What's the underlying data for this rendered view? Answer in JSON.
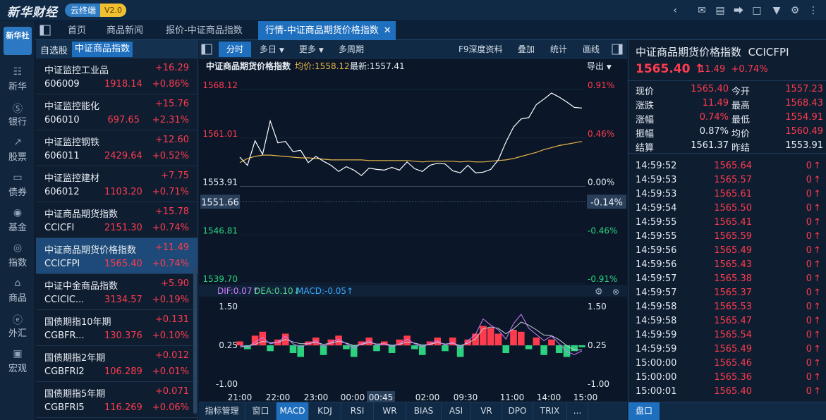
{
  "app": {
    "logo": "新华财经",
    "badge": "云终端",
    "version": "V2.0"
  },
  "left_nav": {
    "brand": "新华社",
    "items": [
      "新华",
      "银行",
      "股票",
      "债券",
      "基金",
      "指数",
      "商品",
      "外汇",
      "宏观"
    ]
  },
  "tabs": [
    {
      "label": "首页"
    },
    {
      "label": "商品新闻"
    },
    {
      "label": "报价-中证商品指数"
    },
    {
      "label": "行情-中证商品期货价格指数",
      "active": true
    }
  ],
  "watchlist": {
    "tab_self": "自选股",
    "tab_active": "中证商品指数",
    "items": [
      {
        "name": "中证监控工业品",
        "code": "606009",
        "change": "+16.29",
        "price": "1918.14",
        "pct": "+0.86%"
      },
      {
        "name": "中证监控能化",
        "code": "606010",
        "change": "+15.76",
        "price": "697.65",
        "pct": "+2.31%"
      },
      {
        "name": "中证监控钢铁",
        "code": "606011",
        "change": "+12.60",
        "price": "2429.64",
        "pct": "+0.52%"
      },
      {
        "name": "中证监控建材",
        "code": "606012",
        "change": "+7.75",
        "price": "1103.20",
        "pct": "+0.71%"
      },
      {
        "name": "中证商品期货指数",
        "code": "CCICFI",
        "change": "+15.78",
        "price": "2151.30",
        "pct": "+0.74%"
      },
      {
        "name": "中证商品期货价格指数",
        "code": "CCICFPI",
        "change": "+11.49",
        "price": "1565.40",
        "pct": "+0.74%",
        "selected": true
      },
      {
        "name": "中证中金商品指数",
        "code": "CCICIC...",
        "change": "+5.90",
        "price": "3134.57",
        "pct": "+0.19%"
      },
      {
        "name": "国债期指10年期",
        "code": "CGBFR...",
        "change": "+0.131",
        "price": "130.376",
        "pct": "+0.10%"
      },
      {
        "name": "国债期指2年期",
        "code": "CGBFRI2",
        "change": "+0.012",
        "price": "106.289",
        "pct": "+0.01%"
      },
      {
        "name": "国债期指5年期",
        "code": "CGBFRI5",
        "change": "+0.071",
        "price": "116.269",
        "pct": "+0.06%"
      }
    ]
  },
  "chart_toolbar": {
    "fenshi": "分时",
    "duori": "多日",
    "gengduo": "更多",
    "duozhouqi": "多周期",
    "f9": "F9深度资料",
    "diejia": "叠加",
    "tongji": "统计",
    "huaxian": "画线"
  },
  "chart_info": {
    "name": "中证商品期货价格指数",
    "avg_label": "均价:1558.12",
    "last_label": "最新:1557.41",
    "export": "导出"
  },
  "chart_data": {
    "type": "line",
    "price_axis": {
      "left_ticks": [
        "1568.12",
        "1561.01",
        "1553.91",
        "1546.81",
        "1539.70"
      ],
      "right_ticks": [
        "0.91%",
        "0.46%",
        "0.00%",
        "-0.46%",
        "-0.91%"
      ],
      "ylim": [
        1539.7,
        1568.12
      ],
      "crosshair_price": "1551.66",
      "crosshair_pct": "-0.14%"
    },
    "x_ticks": [
      "21:00",
      "22:00",
      "23:00",
      "00:00",
      "00:45",
      "02:00",
      "09:30",
      "11:00",
      "14:00",
      "15:00"
    ],
    "crosshair_time": "00:45",
    "price_series": [
      1558.2,
      1557.0,
      1560.6,
      1558.6,
      1563.5,
      1560.3,
      1560.5,
      1559.0,
      1559.2,
      1557.4,
      1558.3,
      1557.6,
      1557.0,
      1556.1,
      1556.8,
      1556.3,
      1555.5,
      1556.6,
      1556.4,
      1556.3,
      1556.7,
      1556.3,
      1557.5,
      1556.5,
      1556.1,
      1557.0,
      1557.3,
      1557.2,
      1556.2,
      1555.9,
      1557.0,
      1555.9,
      1556.0,
      1556.4,
      1557.8,
      1560.4,
      1562.6,
      1563.8,
      1564.0,
      1565.9,
      1566.7,
      1567.6,
      1567.0,
      1566.3,
      1565.5,
      1565.4
    ],
    "avg_series": [
      1557.4,
      1558.0,
      1558.3,
      1558.5,
      1558.5,
      1558.4,
      1558.3,
      1558.2,
      1558.1,
      1558.1,
      1558.0,
      1557.9,
      1557.8,
      1557.8,
      1557.8,
      1557.8,
      1557.8,
      1557.7,
      1557.7,
      1557.7,
      1557.7,
      1557.7,
      1557.7,
      1557.6,
      1557.5,
      1557.6,
      1557.6,
      1557.6,
      1557.6,
      1557.5,
      1557.6,
      1557.5,
      1557.5,
      1557.6,
      1557.7,
      1557.8,
      1558.0,
      1558.3,
      1558.6,
      1558.9,
      1559.3,
      1559.6,
      1559.9,
      1560.1,
      1560.3,
      1560.5
    ],
    "macd": {
      "label_dif": "DIF:0.07↑",
      "label_dea": "DEA:0.10↓",
      "label_macd": "MACD:-0.05↑",
      "ticks": [
        "1.50",
        "0.25",
        "-1.00"
      ],
      "ylim": [
        -1.0,
        1.5
      ],
      "hist": [
        0.1,
        -0.1,
        0.25,
        0.35,
        -0.15,
        0.15,
        0.3,
        -0.2,
        -0.3,
        0.1,
        0.2,
        -0.25,
        0.15,
        0.25,
        -0.1,
        -0.3,
        0.1,
        0.2,
        -0.15,
        0.1,
        -0.2,
        0.15,
        0.25,
        -0.1,
        -0.25,
        0.1,
        0.2,
        -0.15,
        0.2,
        -0.3,
        0.15,
        0.3,
        0.5,
        0.45,
        0.3,
        -0.2,
        0.4,
        0.35,
        -0.1,
        0.2,
        -0.25,
        0.15,
        -0.2,
        -0.3,
        -0.15,
        -0.05
      ],
      "dif": [
        0.25,
        0.2,
        0.35,
        0.5,
        0.3,
        0.35,
        0.55,
        0.3,
        0.2,
        0.3,
        0.4,
        0.2,
        0.35,
        0.45,
        0.3,
        0.15,
        0.3,
        0.4,
        0.25,
        0.3,
        0.2,
        0.3,
        0.45,
        0.3,
        0.2,
        0.3,
        0.4,
        0.25,
        0.35,
        0.15,
        0.4,
        0.6,
        1.1,
        0.9,
        0.75,
        0.45,
        0.95,
        1.25,
        0.8,
        0.6,
        0.4,
        0.55,
        0.3,
        0.05,
        -0.05,
        0.07
      ],
      "dea": [
        0.2,
        0.22,
        0.28,
        0.38,
        0.34,
        0.34,
        0.44,
        0.36,
        0.3,
        0.3,
        0.35,
        0.28,
        0.32,
        0.38,
        0.32,
        0.24,
        0.28,
        0.34,
        0.29,
        0.3,
        0.25,
        0.28,
        0.36,
        0.32,
        0.26,
        0.28,
        0.34,
        0.29,
        0.32,
        0.24,
        0.32,
        0.46,
        0.78,
        0.84,
        0.8,
        0.62,
        0.78,
        1.0,
        0.9,
        0.75,
        0.58,
        0.56,
        0.43,
        0.24,
        0.1,
        0.1
      ]
    }
  },
  "indicator_tabs": [
    "指标管理",
    "窗口",
    "MACD",
    "KDJ",
    "RSI",
    "WR",
    "BIAS",
    "ASI",
    "VR",
    "DPO",
    "TRIX",
    "..."
  ],
  "quote": {
    "title": "中证商品期货价格指数",
    "code": "CCICFPI",
    "price": "1565.40",
    "change": "11.49",
    "pct": "+0.74%",
    "rows": [
      {
        "l1": "现价",
        "v1": "1565.40",
        "c1": "red",
        "l2": "今开",
        "v2": "1557.23",
        "c2": "red"
      },
      {
        "l1": "涨跌",
        "v1": "11.49",
        "c1": "red",
        "l2": "最高",
        "v2": "1568.43",
        "c2": "red"
      },
      {
        "l1": "涨幅",
        "v1": "0.74%",
        "c1": "red",
        "l2": "最低",
        "v2": "1554.91",
        "c2": "red"
      },
      {
        "l1": "振幅",
        "v1": "0.87%",
        "c1": "white",
        "l2": "均价",
        "v2": "1560.49",
        "c2": "red"
      },
      {
        "l1": "结算",
        "v1": "1561.37",
        "c1": "white",
        "l2": "昨结",
        "v2": "1553.91",
        "c2": "white"
      }
    ]
  },
  "ticks": [
    {
      "time": "14:59:52",
      "price": "1565.64",
      "vol": "0"
    },
    {
      "time": "14:59:53",
      "price": "1565.57",
      "vol": "0"
    },
    {
      "time": "14:59:53",
      "price": "1565.61",
      "vol": "0"
    },
    {
      "time": "14:59:54",
      "price": "1565.50",
      "vol": "0"
    },
    {
      "time": "14:59:55",
      "price": "1565.41",
      "vol": "0"
    },
    {
      "time": "14:59:55",
      "price": "1565.59",
      "vol": "0"
    },
    {
      "time": "14:59:56",
      "price": "1565.49",
      "vol": "0"
    },
    {
      "time": "14:59:56",
      "price": "1565.43",
      "vol": "0"
    },
    {
      "time": "14:59:57",
      "price": "1565.38",
      "vol": "0"
    },
    {
      "time": "14:59:57",
      "price": "1565.37",
      "vol": "0"
    },
    {
      "time": "14:59:58",
      "price": "1565.53",
      "vol": "0"
    },
    {
      "time": "14:59:58",
      "price": "1565.47",
      "vol": "0"
    },
    {
      "time": "14:59:59",
      "price": "1565.54",
      "vol": "0"
    },
    {
      "time": "14:59:59",
      "price": "1565.49",
      "vol": "0"
    },
    {
      "time": "15:00:00",
      "price": "1565.46",
      "vol": "0"
    },
    {
      "time": "15:00:00",
      "price": "1565.36",
      "vol": "0"
    },
    {
      "time": "15:00:01",
      "price": "1565.40",
      "vol": "0"
    }
  ],
  "right_bottom_tab": "盘口",
  "colors": {
    "up": "#ff3b4e",
    "down": "#2bd17e",
    "accent": "#1f6fbf",
    "avg_line": "#e6b64a",
    "dif": "#d07cff",
    "dea": "#52d48a",
    "macd": "#3aa8ff"
  }
}
